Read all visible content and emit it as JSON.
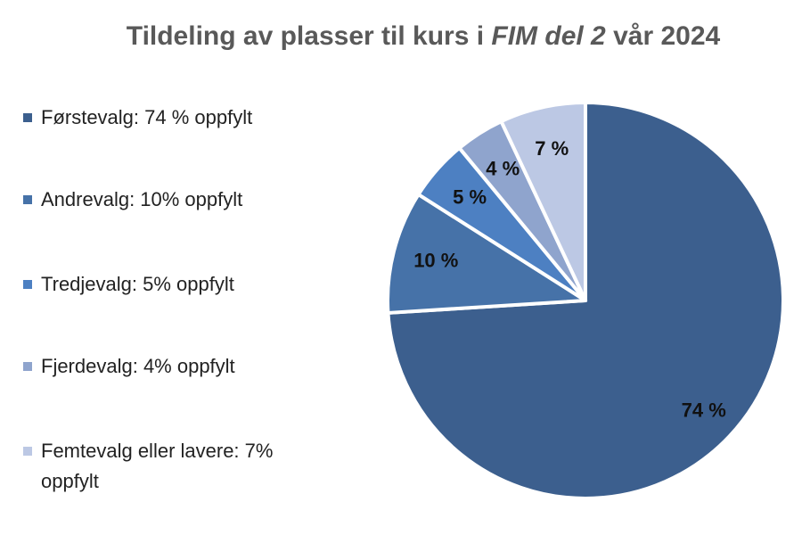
{
  "chart_data": {
    "type": "pie",
    "title": {
      "before": "Tildeling av plasser til kurs i ",
      "italic": "FIM del 2",
      "after": " vår 2024"
    },
    "categories": [
      "Førstevalg: 74 % oppfylt",
      "Andrevalg: 10% oppfylt",
      "Tredjevalg: 5% oppfylt",
      "Fjerdevalg: 4% oppfylt",
      "Femtevalg eller lavere: 7% oppfylt"
    ],
    "values": [
      74,
      10,
      5,
      4,
      7
    ],
    "value_labels": [
      "74 %",
      "10 %",
      "5 %",
      "4 %",
      "7 %"
    ],
    "colors": [
      "#3c5f8e",
      "#4672a8",
      "#4d80c2",
      "#8fa4cd",
      "#bcc8e4"
    ],
    "legend": "left"
  }
}
